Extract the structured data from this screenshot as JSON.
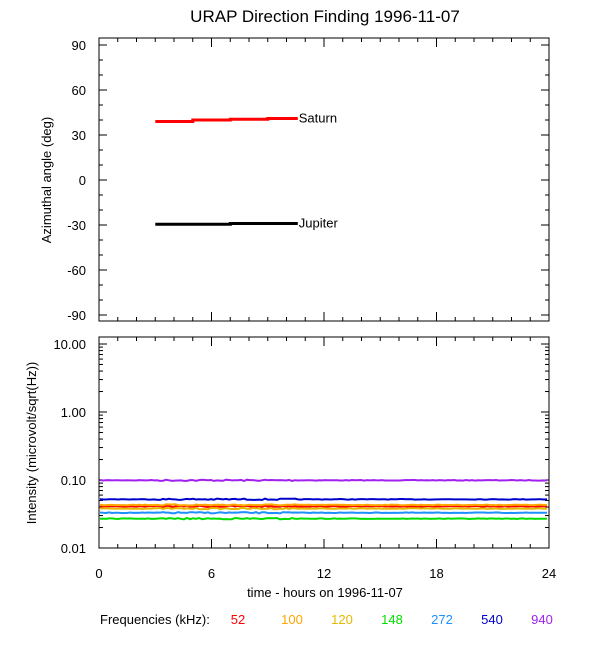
{
  "chart_data": [
    {
      "type": "line",
      "title": "URAP Direction Finding  1996-11-07",
      "ylabel": "Azimuthal angle (deg)",
      "xlim": [
        0,
        24
      ],
      "ylim": [
        -90,
        90
      ],
      "y_ticks": [
        "90",
        "60",
        "30",
        "0",
        "-30",
        "-60",
        "-90"
      ],
      "series": [
        {
          "name": "Saturn",
          "color": "#ff0000",
          "x": [
            3,
            5,
            5,
            7,
            7,
            9,
            9,
            10.6
          ],
          "y": [
            39,
            39,
            40,
            40,
            40.5,
            40.5,
            41,
            41
          ]
        },
        {
          "name": "Jupiter",
          "color": "#000000",
          "x": [
            3,
            7,
            7,
            10.6
          ],
          "y": [
            -29.5,
            -29.5,
            -29,
            -29
          ]
        }
      ]
    },
    {
      "type": "line",
      "ylabel": "Intensity (microvolt/sqrt(Hz))",
      "xlabel": "time - hours on 1996-11-07",
      "xlim": [
        0,
        24
      ],
      "ylim": [
        0.01,
        12
      ],
      "y_scale": "log",
      "y_ticks": [
        "10.00",
        "1.00",
        "0.10",
        "0.01"
      ],
      "x_ticks": [
        "0",
        "6",
        "12",
        "18",
        "24"
      ],
      "series": [
        {
          "name": "940",
          "color": "#a020f0",
          "x": [
            0,
            24
          ],
          "y": [
            0.099,
            0.099
          ]
        },
        {
          "name": "540",
          "color": "#0000cd",
          "x": [
            0,
            24
          ],
          "y": [
            0.052,
            0.052
          ]
        },
        {
          "name": "52",
          "color": "#ff0000",
          "x": [
            0,
            24
          ],
          "y": [
            0.041,
            0.041
          ]
        },
        {
          "name": "100",
          "color": "#ffa500",
          "x": [
            0,
            24
          ],
          "y": [
            0.043,
            0.043
          ]
        },
        {
          "name": "120",
          "color": "#e6b800",
          "x": [
            0,
            24
          ],
          "y": [
            0.038,
            0.038
          ]
        },
        {
          "name": "272",
          "color": "#1e90ff",
          "x": [
            0,
            24
          ],
          "y": [
            0.033,
            0.033
          ]
        },
        {
          "name": "148",
          "color": "#00e000",
          "x": [
            0,
            24
          ],
          "y": [
            0.027,
            0.027
          ]
        }
      ]
    }
  ],
  "legend": {
    "label": "Frequencies (kHz):",
    "items": [
      {
        "text": "52",
        "color": "#ff0000"
      },
      {
        "text": "100",
        "color": "#ffa500"
      },
      {
        "text": "120",
        "color": "#e6b800"
      },
      {
        "text": "148",
        "color": "#00e000"
      },
      {
        "text": "272",
        "color": "#1e90ff"
      },
      {
        "text": "540",
        "color": "#0000cd"
      },
      {
        "text": "940",
        "color": "#a020f0"
      }
    ]
  }
}
